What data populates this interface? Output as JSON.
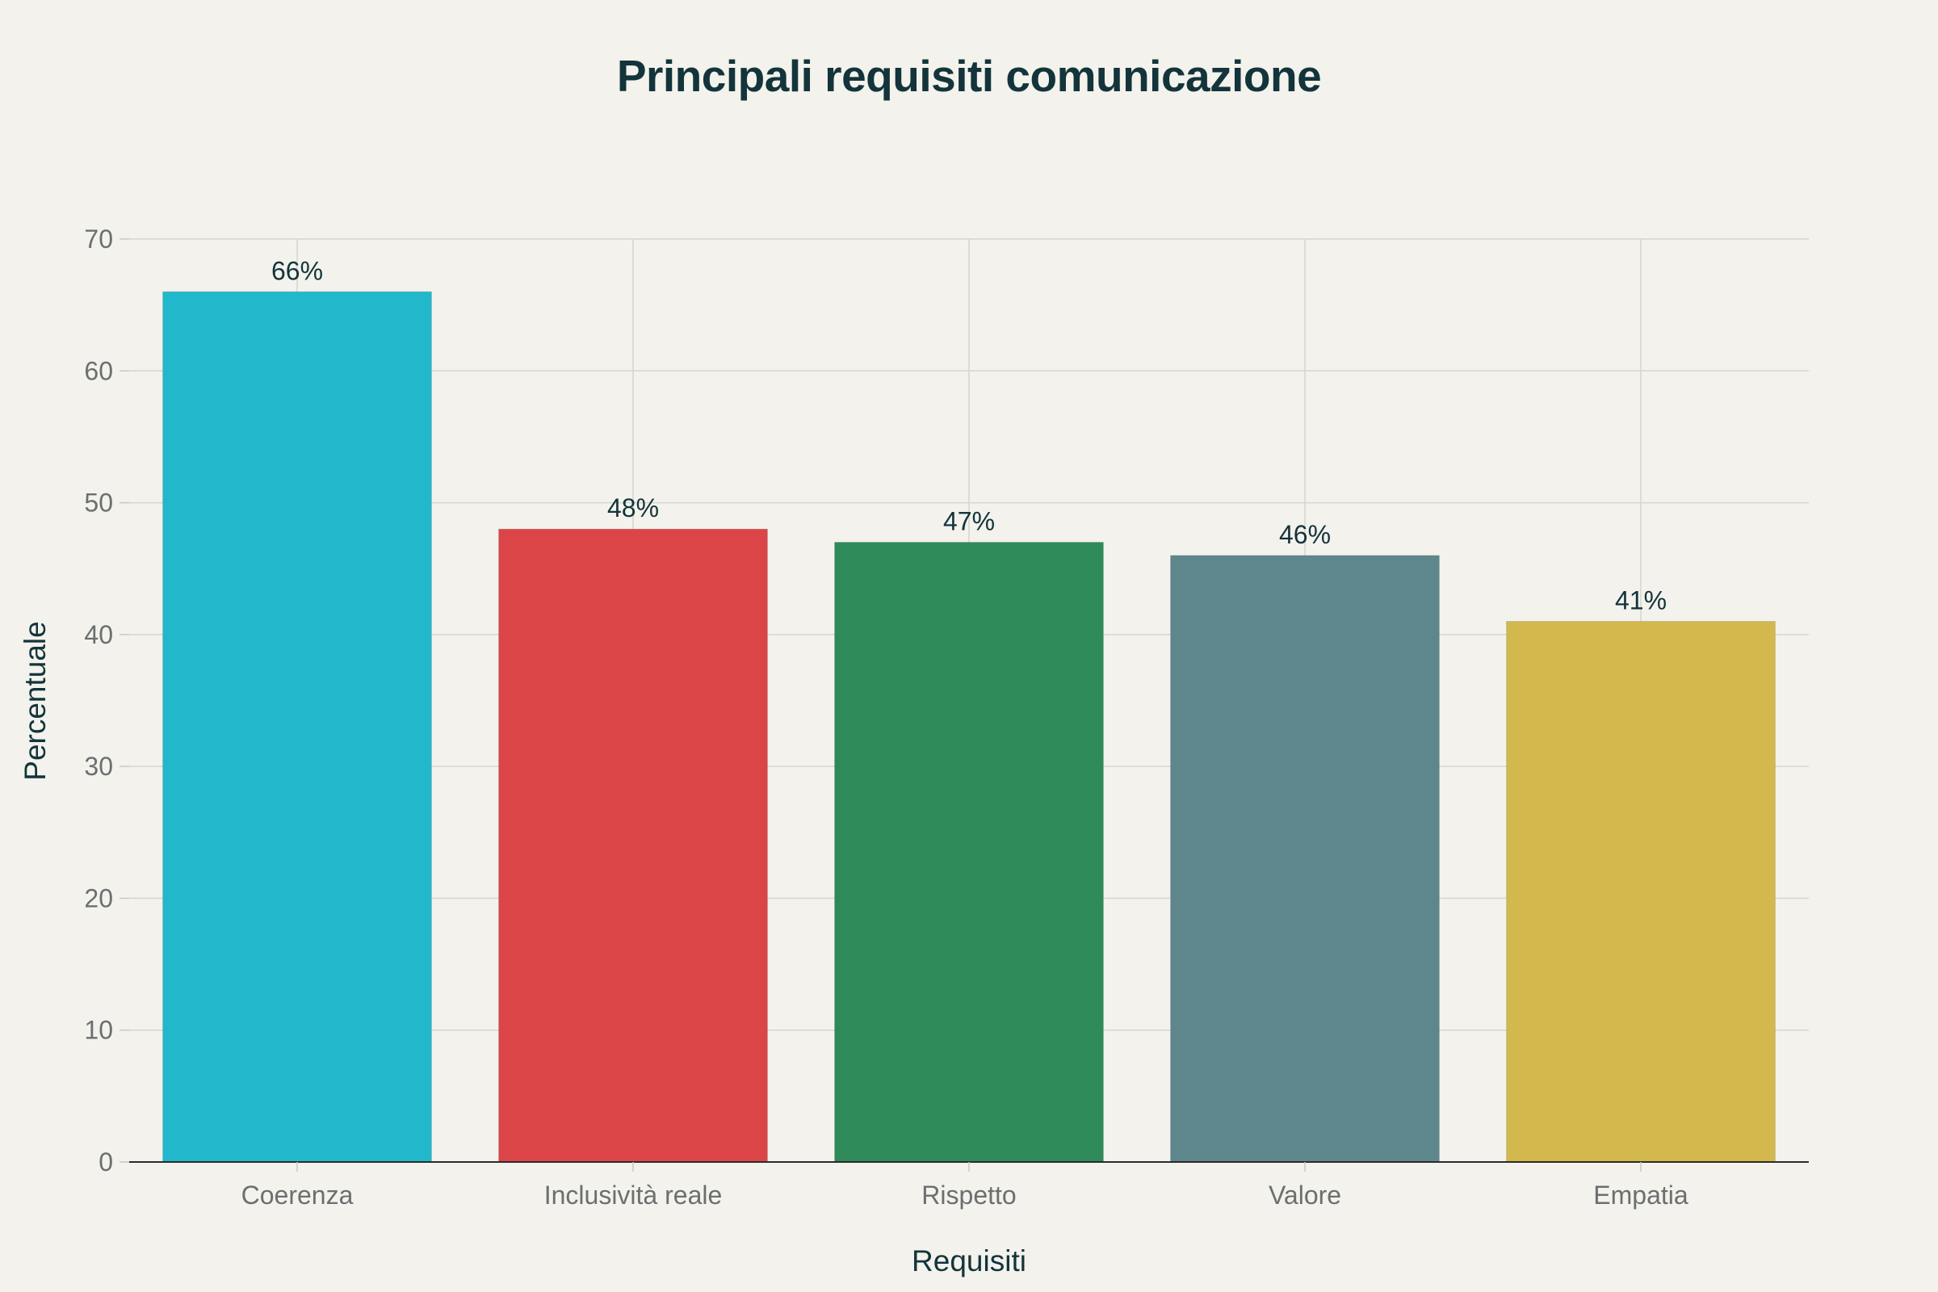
{
  "chart_data": {
    "type": "bar",
    "title": "Principali requisiti comunicazione",
    "xlabel": "Requisiti",
    "ylabel": "Percentuale",
    "categories": [
      "Coerenza",
      "Inclusività reale",
      "Rispetto",
      "Valore",
      "Empatia"
    ],
    "values": [
      66,
      48,
      47,
      46,
      41
    ],
    "data_labels": [
      "66%",
      "48%",
      "47%",
      "46%",
      "41%"
    ],
    "colors": [
      "#21b8cc",
      "#db4547",
      "#2e8a58",
      "#5e878d",
      "#d2b84d"
    ],
    "ylim": [
      0,
      70
    ],
    "yticks": [
      0,
      10,
      20,
      30,
      40,
      50,
      60,
      70
    ],
    "grid": true,
    "legend": "none"
  }
}
